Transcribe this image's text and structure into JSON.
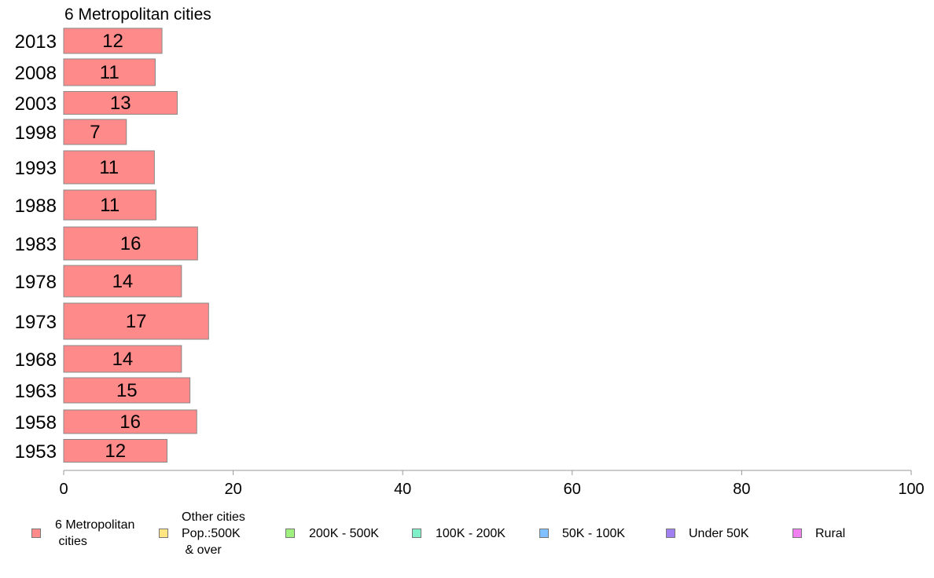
{
  "chart_data": {
    "type": "bar",
    "orientation": "horizontal",
    "title": "6 Metropolitan cities",
    "categories": [
      "2013",
      "2008",
      "2003",
      "1998",
      "1993",
      "1988",
      "1983",
      "1978",
      "1973",
      "1968",
      "1963",
      "1958",
      "1953"
    ],
    "series": [
      {
        "name": "6 Metropolitan cities",
        "color": "#ff8a8a",
        "values": [
          11.6,
          10.8,
          13.4,
          7.4,
          10.7,
          10.9,
          15.8,
          13.9,
          17.1,
          13.9,
          14.9,
          15.7,
          12.2
        ],
        "labels": [
          "12",
          "11",
          "13",
          "7",
          "11",
          "11",
          "16",
          "14",
          "17",
          "14",
          "15",
          "16",
          "12"
        ]
      }
    ],
    "xlim": [
      0,
      100
    ],
    "xticks": [
      "0",
      "20",
      "40",
      "60",
      "80",
      "100"
    ],
    "legend_position": "bottom",
    "legend": [
      {
        "label": "6 Metropolitan\n cities",
        "color": "#ff8a8a"
      },
      {
        "label": "Other cities\nPop.:500K\n & over",
        "color": "#ffe680"
      },
      {
        "label": "200K - 500K",
        "color": "#a0f080"
      },
      {
        "label": "100K - 200K",
        "color": "#80f0c8"
      },
      {
        "label": "50K - 100K",
        "color": "#80c0ff"
      },
      {
        "label": "Under 50K",
        "color": "#a080f0"
      },
      {
        "label": "Rural",
        "color": "#f080f0"
      }
    ]
  }
}
